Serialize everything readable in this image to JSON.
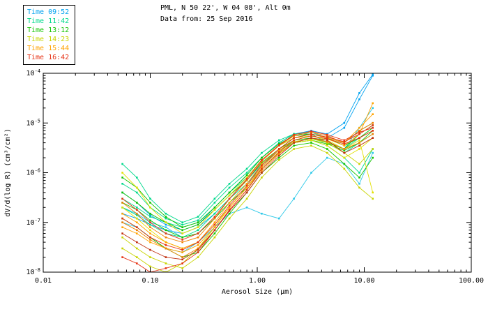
{
  "header": {
    "title_line1": "PML, N 50 22', W 04 08', Alt 0m",
    "title_line2": "Data from: 25 Sep 2016"
  },
  "legend": {
    "entries": [
      {
        "label": "Time 09:52",
        "color": "#00a2f0"
      },
      {
        "label": "Time 11:42",
        "color": "#00d98c"
      },
      {
        "label": "Time 13:12",
        "color": "#14c400"
      },
      {
        "label": "Time 14:23",
        "color": "#c8d400"
      },
      {
        "label": "Time 15:44",
        "color": "#ffa300"
      },
      {
        "label": "Time 16:42",
        "color": "#e63214"
      }
    ]
  },
  "chart_data": {
    "type": "line",
    "title": "PML, N 50 22', W 04 08', Alt 0m",
    "subtitle": "Data from: 25 Sep 2016",
    "xlabel": "Aerosol Size (µm)",
    "ylabel": "dV/d(log R) (cm³/cm²)",
    "x_scale": "log",
    "y_scale": "log",
    "xlim": [
      0.01,
      100
    ],
    "ylim": [
      1e-08,
      0.0001
    ],
    "grid": false,
    "legend_position": "top-left",
    "x_ticks": [
      "0.01",
      "0.10",
      "1.00",
      "10.00",
      "100.00"
    ],
    "x_tick_values": [
      0.01,
      0.1,
      1,
      10,
      100
    ],
    "y_tick_exponents": [
      -8,
      -7,
      -6,
      -5,
      -4
    ],
    "x": [
      0.055,
      0.075,
      0.1,
      0.14,
      0.2,
      0.28,
      0.4,
      0.55,
      0.8,
      1.1,
      1.6,
      2.2,
      3.2,
      4.5,
      6.5,
      9,
      12
    ],
    "series": [
      {
        "name": "Time 09:52",
        "color": "#00a2f0",
        "values": [
          1.5e-07,
          1.2e-07,
          9e-08,
          7e-08,
          6e-08,
          8e-08,
          1.5e-07,
          3e-07,
          7e-07,
          1.5e-06,
          3e-06,
          5e-06,
          6e-06,
          5e-06,
          8e-06,
          3e-05,
          9e-05
        ]
      },
      {
        "name": "Time 09:52",
        "color": "#00a2f0",
        "values": [
          4e-07,
          2.5e-07,
          1.4e-07,
          9e-08,
          7e-08,
          9e-08,
          2e-07,
          4e-07,
          9e-07,
          2e-06,
          4e-06,
          6e-06,
          7e-06,
          6e-06,
          1e-05,
          4e-05,
          9.5e-05
        ]
      },
      {
        "name": "Time 09:52",
        "color": "#2bc8e8",
        "values": [
          2e-07,
          1.5e-07,
          1e-07,
          8e-08,
          5e-08,
          6e-08,
          1.2e-07,
          2.5e-07,
          6e-07,
          1.2e-06,
          2.5e-06,
          4e-06,
          5e-06,
          4e-06,
          3e-06,
          8e-06,
          2e-05
        ]
      },
      {
        "name": "Time 09:52",
        "color": "#2bc8e8",
        "values": [
          1e-07,
          8e-08,
          5e-08,
          3e-08,
          2.5e-08,
          4e-08,
          8e-08,
          1.5e-07,
          2e-07,
          1.5e-07,
          1.2e-07,
          3e-07,
          1e-06,
          2e-06,
          1.5e-06,
          6e-07,
          2.5e-06
        ]
      },
      {
        "name": "Time 11:42",
        "color": "#00d98c",
        "values": [
          3e-07,
          2e-07,
          1.3e-07,
          1e-07,
          8e-08,
          1e-07,
          2e-07,
          4e-07,
          8e-07,
          1.8e-06,
          3.5e-06,
          5e-06,
          5.5e-06,
          4.5e-06,
          3e-06,
          5e-06,
          8e-06
        ]
      },
      {
        "name": "Time 11:42",
        "color": "#00d98c",
        "values": [
          6e-07,
          4e-07,
          2e-07,
          1.2e-07,
          9e-08,
          1.1e-07,
          2.5e-07,
          5e-07,
          1e-06,
          2e-06,
          4e-06,
          6e-06,
          6.5e-06,
          5e-06,
          4e-06,
          7e-06,
          1e-05
        ]
      },
      {
        "name": "Time 11:42",
        "color": "#00d98c",
        "values": [
          1.5e-06,
          8e-07,
          3e-07,
          1.5e-07,
          1e-07,
          1.3e-07,
          3e-07,
          6e-07,
          1.2e-06,
          2.5e-06,
          4.5e-06,
          6e-06,
          6e-06,
          4e-06,
          2.5e-06,
          4e-06,
          6e-06
        ]
      },
      {
        "name": "Time 11:42",
        "color": "#00d98c",
        "values": [
          2e-07,
          1.4e-07,
          9e-08,
          6e-08,
          5e-08,
          7e-08,
          1.5e-07,
          3e-07,
          6e-07,
          1.4e-06,
          2.8e-06,
          4e-06,
          4.5e-06,
          3.5e-06,
          2e-06,
          1e-06,
          3e-06
        ]
      },
      {
        "name": "Time 13:12",
        "color": "#14c400",
        "values": [
          4e-07,
          2.5e-07,
          1.5e-07,
          1e-07,
          7e-08,
          9e-08,
          1.8e-07,
          3.5e-07,
          7e-07,
          1.6e-06,
          3e-06,
          4.5e-06,
          5e-06,
          4e-06,
          3e-06,
          6e-06,
          9e-06
        ]
      },
      {
        "name": "Time 13:12",
        "color": "#14c400",
        "values": [
          2.5e-07,
          1.8e-07,
          1.1e-07,
          7e-08,
          5e-08,
          6e-08,
          1.2e-07,
          2.5e-07,
          5e-07,
          1.2e-06,
          2.5e-06,
          4e-06,
          4.5e-06,
          3.8e-06,
          2.8e-06,
          4e-06,
          7e-06
        ]
      },
      {
        "name": "Time 13:12",
        "color": "#14c400",
        "values": [
          8e-07,
          5e-07,
          2.5e-07,
          1.3e-07,
          8e-08,
          1e-07,
          2e-07,
          4e-07,
          9e-07,
          2e-06,
          3.8e-06,
          5.5e-06,
          6e-06,
          5e-06,
          3.5e-06,
          5e-06,
          8e-06
        ]
      },
      {
        "name": "Time 13:12",
        "color": "#14c400",
        "values": [
          1.2e-07,
          8e-08,
          5e-08,
          3e-08,
          2e-08,
          2.5e-08,
          6e-08,
          1.5e-07,
          4e-07,
          1e-06,
          2e-06,
          3.5e-06,
          4e-06,
          3e-06,
          1.5e-06,
          8e-07,
          2e-06
        ]
      },
      {
        "name": "Time 14:23",
        "color": "#c8d400",
        "values": [
          5e-08,
          3e-08,
          2e-08,
          1.5e-08,
          1.2e-08,
          2e-08,
          5e-08,
          1.2e-07,
          3e-07,
          8e-07,
          1.8e-06,
          3e-06,
          3.5e-06,
          2.5e-06,
          1.2e-06,
          5e-07,
          3e-07
        ]
      },
      {
        "name": "Time 14:23",
        "color": "#e2e000",
        "values": [
          2e-07,
          1.2e-07,
          7e-08,
          4e-08,
          3e-08,
          4e-08,
          9e-08,
          2e-07,
          5e-07,
          1.2e-06,
          2.5e-06,
          4e-06,
          4.5e-06,
          3.5e-06,
          2e-06,
          3e-06,
          5e-06
        ]
      },
      {
        "name": "Time 14:23",
        "color": "#e2e000",
        "values": [
          1e-06,
          5e-07,
          2e-07,
          1e-07,
          6e-08,
          8e-08,
          1.8e-07,
          3.5e-07,
          8e-07,
          1.8e-06,
          3.5e-06,
          5e-06,
          5.5e-06,
          4.5e-06,
          3e-06,
          4.5e-06,
          4e-07
        ]
      },
      {
        "name": "Time 14:23",
        "color": "#c8d400",
        "values": [
          3e-08,
          2e-08,
          1.3e-08,
          1e-08,
          1.5e-08,
          3e-08,
          8e-08,
          2e-07,
          5e-07,
          1.3e-06,
          2.8e-06,
          4.2e-06,
          4.8e-06,
          4e-06,
          2.5e-06,
          1.5e-06,
          3e-06
        ]
      },
      {
        "name": "Time 15:44",
        "color": "#ffa300",
        "values": [
          1.5e-07,
          1e-07,
          6e-08,
          4e-08,
          3e-08,
          4e-08,
          1e-07,
          2.5e-07,
          6e-07,
          1.5e-06,
          3e-06,
          5e-06,
          6e-06,
          5e-06,
          4e-06,
          8e-06,
          1.5e-05
        ]
      },
      {
        "name": "Time 15:44",
        "color": "#ffa300",
        "values": [
          8e-08,
          6e-08,
          4e-08,
          3e-08,
          2.5e-08,
          3.5e-08,
          8e-08,
          2e-07,
          5e-07,
          1.3e-06,
          2.8e-06,
          4.5e-06,
          5.5e-06,
          4.8e-06,
          3.5e-06,
          6e-06,
          2.5e-05
        ]
      },
      {
        "name": "Time 15:44",
        "color": "#f08000",
        "values": [
          2.5e-07,
          1.5e-07,
          8e-08,
          5e-08,
          4e-08,
          5e-08,
          1.2e-07,
          3e-07,
          7e-07,
          1.7e-06,
          3.5e-06,
          5.5e-06,
          6.5e-06,
          5.5e-06,
          4e-06,
          7e-06,
          1e-05
        ]
      },
      {
        "name": "Time 15:44",
        "color": "#f08000",
        "values": [
          1e-07,
          7e-08,
          4.5e-08,
          3e-08,
          2e-08,
          3e-08,
          7e-08,
          1.8e-07,
          4.5e-07,
          1.1e-06,
          2.4e-06,
          4e-06,
          5e-06,
          4.2e-06,
          3e-06,
          4e-06,
          6e-06
        ]
      },
      {
        "name": "Time 16:42",
        "color": "#e63214",
        "values": [
          2e-08,
          1.5e-08,
          1e-08,
          1.2e-08,
          1.5e-08,
          2.5e-08,
          7e-08,
          1.8e-07,
          4.5e-07,
          1.2e-06,
          2.6e-06,
          4.5e-06,
          5.5e-06,
          4.8e-06,
          3.8e-06,
          5e-06,
          7e-06
        ]
      },
      {
        "name": "Time 16:42",
        "color": "#e63214",
        "values": [
          1.2e-07,
          8e-08,
          5e-08,
          3.5e-08,
          2.8e-08,
          4e-08,
          9e-08,
          2.2e-07,
          5.5e-07,
          1.4e-06,
          3e-06,
          5e-06,
          6e-06,
          5.2e-06,
          4.2e-06,
          6e-06,
          9e-06
        ]
      },
      {
        "name": "Time 16:42",
        "color": "#c03010",
        "values": [
          6e-08,
          4e-08,
          2.8e-08,
          2e-08,
          1.8e-08,
          2.8e-08,
          7e-08,
          1.7e-07,
          4e-07,
          1e-06,
          2.2e-06,
          4e-06,
          5e-06,
          4.5e-06,
          2.5e-06,
          3.5e-06,
          5e-06
        ]
      },
      {
        "name": "Time 16:42",
        "color": "#e63214",
        "values": [
          3e-07,
          1.8e-07,
          1e-07,
          6e-08,
          4.5e-08,
          6e-08,
          1.3e-07,
          3e-07,
          7.5e-07,
          1.8e-06,
          3.6e-06,
          5.8e-06,
          6.8e-06,
          5.8e-06,
          4.5e-06,
          6.5e-06,
          8e-06
        ]
      }
    ]
  }
}
